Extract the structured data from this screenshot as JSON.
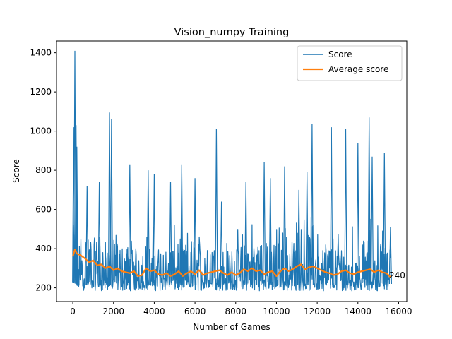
{
  "chart_data": {
    "type": "line",
    "title": "Vision_numpy Training",
    "xlabel": "Number of Games",
    "ylabel": "Score",
    "xlim": [
      -800,
      16400
    ],
    "ylim": [
      130,
      1460
    ],
    "xticks": [
      0,
      2000,
      4000,
      6000,
      8000,
      10000,
      12000,
      14000,
      16000
    ],
    "xtick_labels": [
      "0",
      "2000",
      "4000",
      "6000",
      "8000",
      "10000",
      "12000",
      "14000",
      "16000"
    ],
    "yticks": [
      200,
      400,
      600,
      800,
      1000,
      1200,
      1400
    ],
    "ytick_labels": [
      "200",
      "400",
      "600",
      "800",
      "1000",
      "1200",
      "1400"
    ],
    "grid": false,
    "legend": "top-right",
    "last_value_label": "240",
    "series": [
      {
        "name": "Score",
        "color": "#1f77b4",
        "style": "noisy-envelope",
        "x": [
          0,
          100,
          200,
          500,
          1000,
          1500,
          2000,
          2500,
          3000,
          3500,
          4000,
          4500,
          5000,
          5500,
          6000,
          6500,
          7000,
          7500,
          8000,
          8500,
          9000,
          9500,
          10000,
          10500,
          11000,
          11500,
          12000,
          12500,
          13000,
          13500,
          14000,
          14500,
          15000,
          15600
        ],
        "typical_high": [
          700,
          680,
          700,
          620,
          600,
          560,
          580,
          520,
          500,
          540,
          520,
          500,
          520,
          500,
          520,
          500,
          520,
          490,
          500,
          560,
          600,
          560,
          580,
          580,
          560,
          620,
          640,
          560,
          540,
          560,
          560,
          580,
          580,
          500
        ],
        "floor": [
          200,
          195,
          190,
          185,
          185,
          185,
          185,
          185,
          185,
          185,
          185,
          185,
          185,
          185,
          185,
          185,
          185,
          185,
          185,
          185,
          185,
          185,
          185,
          185,
          185,
          185,
          185,
          185,
          185,
          185,
          185,
          185,
          185,
          190
        ],
        "spikes": [
          {
            "x": 40,
            "y": 1020
          },
          {
            "x": 100,
            "y": 1410
          },
          {
            "x": 160,
            "y": 1030
          },
          {
            "x": 200,
            "y": 920
          },
          {
            "x": 700,
            "y": 720
          },
          {
            "x": 1300,
            "y": 740
          },
          {
            "x": 1800,
            "y": 1095
          },
          {
            "x": 1900,
            "y": 1060
          },
          {
            "x": 2800,
            "y": 830
          },
          {
            "x": 3700,
            "y": 800
          },
          {
            "x": 4000,
            "y": 780
          },
          {
            "x": 4800,
            "y": 740
          },
          {
            "x": 5350,
            "y": 830
          },
          {
            "x": 6000,
            "y": 760
          },
          {
            "x": 7050,
            "y": 1010
          },
          {
            "x": 7300,
            "y": 640
          },
          {
            "x": 8500,
            "y": 740
          },
          {
            "x": 9400,
            "y": 840
          },
          {
            "x": 9700,
            "y": 760
          },
          {
            "x": 10400,
            "y": 820
          },
          {
            "x": 11100,
            "y": 700
          },
          {
            "x": 11500,
            "y": 790
          },
          {
            "x": 11750,
            "y": 1035
          },
          {
            "x": 12700,
            "y": 1020
          },
          {
            "x": 13400,
            "y": 1010
          },
          {
            "x": 14000,
            "y": 940
          },
          {
            "x": 14550,
            "y": 1070
          },
          {
            "x": 14700,
            "y": 870
          },
          {
            "x": 15300,
            "y": 890
          },
          {
            "x": 15600,
            "y": 510
          }
        ]
      },
      {
        "name": "Average score",
        "color": "#ff7f0e",
        "x": [
          0,
          100,
          200,
          400,
          600,
          800,
          1000,
          1200,
          1400,
          1600,
          1800,
          2000,
          2200,
          2400,
          2600,
          2800,
          3000,
          3200,
          3400,
          3600,
          3800,
          4000,
          4200,
          4400,
          4600,
          4800,
          5000,
          5200,
          5400,
          5600,
          5800,
          6000,
          6200,
          6400,
          6600,
          6800,
          7000,
          7200,
          7400,
          7600,
          7800,
          8000,
          8200,
          8400,
          8600,
          8800,
          9000,
          9200,
          9400,
          9600,
          9800,
          10000,
          10200,
          10400,
          10600,
          10800,
          11000,
          11200,
          11400,
          11600,
          11800,
          12000,
          12200,
          12400,
          12600,
          12800,
          13000,
          13200,
          13400,
          13600,
          13800,
          14000,
          14200,
          14400,
          14600,
          14800,
          15000,
          15200,
          15400,
          15600
        ],
        "y": [
          360,
          395,
          375,
          365,
          350,
          330,
          340,
          315,
          320,
          300,
          310,
          290,
          300,
          285,
          280,
          275,
          285,
          260,
          265,
          300,
          285,
          290,
          270,
          265,
          275,
          260,
          270,
          285,
          260,
          275,
          285,
          270,
          290,
          265,
          275,
          280,
          285,
          290,
          275,
          265,
          280,
          265,
          275,
          295,
          285,
          300,
          285,
          290,
          270,
          280,
          285,
          260,
          285,
          300,
          285,
          295,
          310,
          320,
          295,
          305,
          310,
          300,
          290,
          280,
          275,
          265,
          270,
          285,
          290,
          275,
          270,
          280,
          285,
          290,
          295,
          280,
          290,
          280,
          275,
          255
        ]
      }
    ]
  }
}
